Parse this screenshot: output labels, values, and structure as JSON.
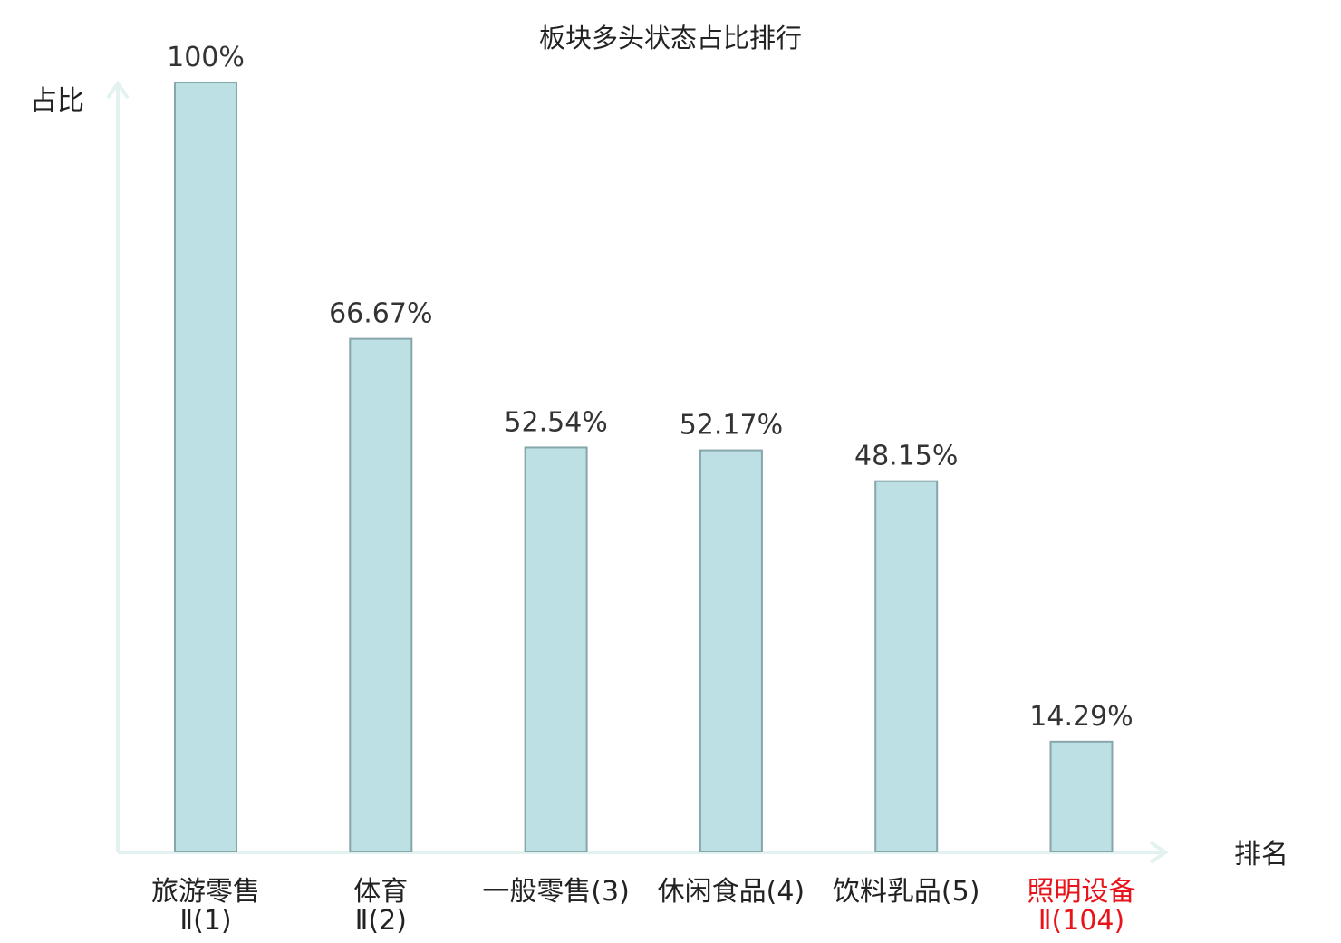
{
  "chart_data": {
    "type": "bar",
    "title": "板块多头状态占比排行",
    "ylabel": "占比",
    "xlabel": "排名",
    "ylim": [
      0,
      100
    ],
    "grid": false,
    "value_suffix": "%",
    "categories": [
      {
        "name": "旅游零售Ⅱ",
        "rank": "(1)",
        "highlight": false
      },
      {
        "name": "体育Ⅱ",
        "rank": "(2)",
        "highlight": false
      },
      {
        "name": "一般零售",
        "rank": "(3)",
        "highlight": false
      },
      {
        "name": "休闲食品",
        "rank": "(4)",
        "highlight": false
      },
      {
        "name": "饮料乳品",
        "rank": "(5)",
        "highlight": false
      },
      {
        "name": "照明设备Ⅱ",
        "rank": "(104)",
        "highlight": true
      }
    ],
    "values": [
      100,
      66.67,
      52.54,
      52.17,
      48.15,
      14.29
    ],
    "value_labels": [
      "100%",
      "66.67%",
      "52.54%",
      "52.17%",
      "48.15%",
      "14.29%"
    ],
    "colors": {
      "bar_fill": "#bce0e3",
      "bar_stroke": "#86a6ab",
      "axis": "#e2f2f0",
      "label": "#222222",
      "highlight": "#e8141b"
    }
  }
}
